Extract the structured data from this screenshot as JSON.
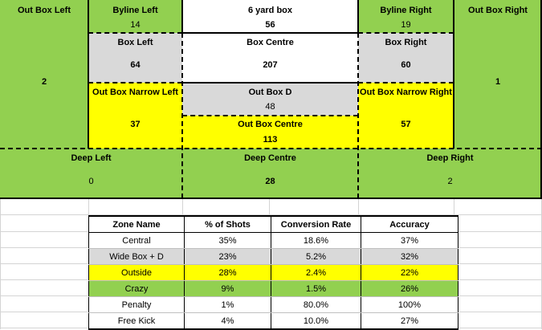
{
  "zones": {
    "out_box_left": {
      "label": "Out Box Left",
      "value": "2"
    },
    "byline_left": {
      "label": "Byline Left",
      "value": "14"
    },
    "six_yard_box": {
      "label": "6 yard box",
      "value": "56"
    },
    "byline_right": {
      "label": "Byline Right",
      "value": "19"
    },
    "out_box_right": {
      "label": "Out Box Right",
      "value": "1"
    },
    "box_left": {
      "label": "Box Left",
      "value": "64"
    },
    "box_centre": {
      "label": "Box Centre",
      "value": "207"
    },
    "box_right": {
      "label": "Box Right",
      "value": "60"
    },
    "out_box_narrow_left": {
      "label": "Out Box Narrow Left",
      "value": "37"
    },
    "out_box_d": {
      "label": "Out Box D",
      "value": "48"
    },
    "out_box_centre": {
      "label": "Out Box Centre",
      "value": "113"
    },
    "out_box_narrow_right": {
      "label": "Out Box Narrow Right",
      "value": "57"
    },
    "deep_left": {
      "label": "Deep Left",
      "value": "0"
    },
    "deep_centre": {
      "label": "Deep Centre",
      "value": "28"
    },
    "deep_right": {
      "label": "Deep Right",
      "value": "2"
    }
  },
  "table": {
    "headers": [
      "Zone Name",
      "% of Shots",
      "Conversion Rate",
      "Accuracy"
    ],
    "rows": [
      {
        "cells": [
          "Central",
          "35%",
          "18.6%",
          "37%"
        ],
        "color": "#ffffff"
      },
      {
        "cells": [
          "Wide Box + D",
          "23%",
          "5.2%",
          "32%"
        ],
        "color": "#d9d9d9"
      },
      {
        "cells": [
          "Outside",
          "28%",
          "2.4%",
          "22%"
        ],
        "color": "#ffff00"
      },
      {
        "cells": [
          "Crazy",
          "9%",
          "1.5%",
          "26%"
        ],
        "color": "#92d050"
      },
      {
        "cells": [
          "Penalty",
          "1%",
          "80.0%",
          "100%"
        ],
        "color": "#ffffff"
      },
      {
        "cells": [
          "Free Kick",
          "4%",
          "10.0%",
          "27%"
        ],
        "color": "#ffffff"
      }
    ]
  },
  "colors": {
    "green": "#92d050",
    "grey": "#d9d9d9",
    "yellow": "#ffff00",
    "white": "#ffffff"
  }
}
